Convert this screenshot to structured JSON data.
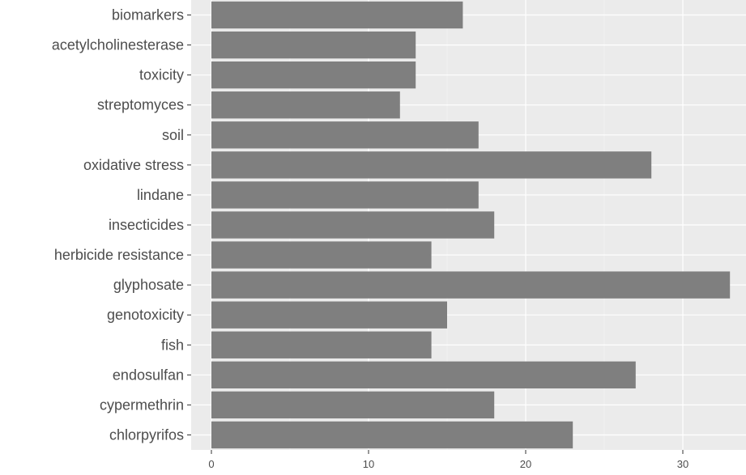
{
  "chart_data": {
    "type": "bar",
    "orientation": "horizontal",
    "categories": [
      "biomarkers",
      "acetylcholinesterase",
      "toxicity",
      "streptomyces",
      "soil",
      "oxidative stress",
      "lindane",
      "insecticides",
      "herbicide resistance",
      "glyphosate",
      "genotoxicity",
      "fish",
      "endosulfan",
      "cypermethrin",
      "chlorpyrifos"
    ],
    "values": [
      16,
      13,
      13,
      12,
      17,
      28,
      17,
      18,
      14,
      33,
      15,
      14,
      27,
      18,
      23
    ],
    "x_ticks": [
      0,
      10,
      20,
      30
    ],
    "xlim": [
      0,
      33
    ],
    "title": "",
    "xlabel": "",
    "ylabel": "",
    "grid": true,
    "colors": {
      "bar": "#7f7f7f",
      "panel": "#ebebeb",
      "grid": "#ffffff"
    }
  }
}
